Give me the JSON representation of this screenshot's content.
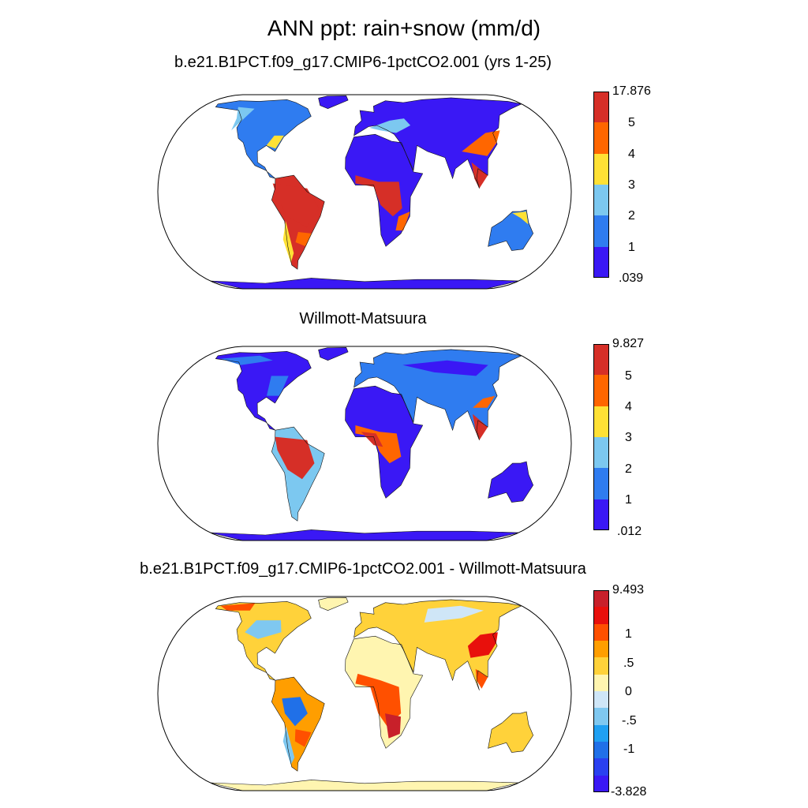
{
  "main_title": "ANN ppt: rain+snow (mm/d)",
  "panels": [
    {
      "title": "b.e21.B1PCT.f09_g17.CMIP6-1pctCO2.001 (yrs 1-25)",
      "colorbar": {
        "max_label": "17.876",
        "min_label": ".039",
        "ticks": [
          "5",
          "4",
          "3",
          "2",
          "1"
        ],
        "colors": [
          "#d62f27",
          "#ff6600",
          "#ffe135",
          "#7cc8f0",
          "#2f7cf0",
          "#3a18f5"
        ]
      }
    },
    {
      "title": "Willmott-Matsuura",
      "colorbar": {
        "max_label": "9.827",
        "min_label": ".012",
        "ticks": [
          "5",
          "4",
          "3",
          "2",
          "1"
        ],
        "colors": [
          "#d62f27",
          "#ff6600",
          "#ffe135",
          "#7cc8f0",
          "#2f7cf0",
          "#3a18f5"
        ]
      }
    },
    {
      "title": "b.e21.B1PCT.f09_g17.CMIP6-1pctCO2.001 - Willmott-Matsuura",
      "colorbar": {
        "max_label": "9.493",
        "min_label": "-3.828",
        "ticks": [
          "1",
          ".5",
          "0",
          "-.5",
          "-1"
        ],
        "colors": [
          "#c8202a",
          "#e8100c",
          "#ff5000",
          "#ff9e00",
          "#ffd23a",
          "#fff5b0",
          "#cfe6f7",
          "#7fc8f0",
          "#1fa0f2",
          "#2070e8",
          "#2a40f0",
          "#3a18f5"
        ]
      }
    }
  ],
  "map": {
    "ocean_color": "#ffffff",
    "outline_color": "#000000"
  }
}
